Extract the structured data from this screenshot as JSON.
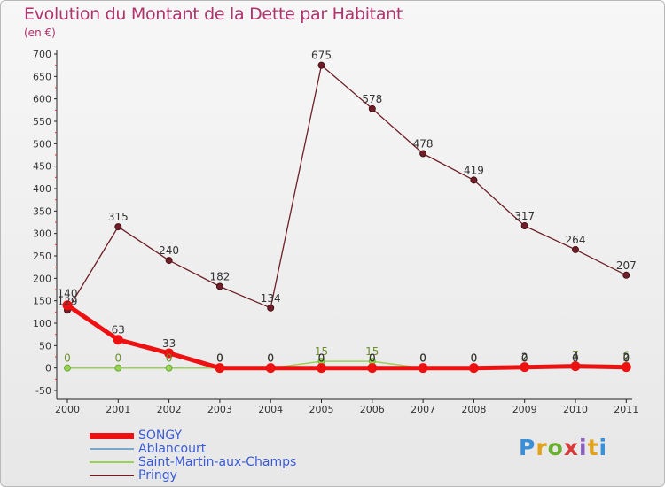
{
  "header": {
    "title": "Evolution du Montant de la Dette par Habitant",
    "subtitle": "(en €)"
  },
  "logo": {
    "text": "Proxiti",
    "colors": [
      "#3b8fd6",
      "#e2a21c",
      "#6ab02e",
      "#d93b3b",
      "#8a5ec2",
      "#e2a21c",
      "#3b8fd6"
    ]
  },
  "chart_data": {
    "type": "line",
    "x": [
      "2000",
      "2001",
      "2002",
      "2003",
      "2004",
      "2005",
      "2006",
      "2007",
      "2008",
      "2009",
      "2010",
      "2011"
    ],
    "ylim": [
      -50,
      700
    ],
    "yticks": [
      "-50",
      "0",
      "50",
      "100",
      "150",
      "200",
      "250",
      "300",
      "350",
      "400",
      "450",
      "500",
      "550",
      "600",
      "650",
      "700"
    ],
    "grid": false,
    "legend_position": "bottom-left",
    "series": [
      {
        "name": "SONGY",
        "color": "#ee1111",
        "values": [
          140,
          63,
          33,
          0,
          0,
          0,
          0,
          0,
          0,
          2,
          4,
          2
        ],
        "labels": [
          "140",
          "63",
          "33",
          "0",
          "0",
          "0",
          "0",
          "0",
          "0",
          "2",
          "4",
          "2"
        ]
      },
      {
        "name": "Ablancourt",
        "color": "#7ba7cc",
        "values": [
          null,
          null,
          null,
          0,
          0,
          0,
          0,
          0,
          0,
          0,
          0,
          0
        ],
        "labels": [
          "",
          "",
          "",
          "0",
          "0",
          "0",
          "0",
          "0",
          "0",
          "0",
          "0",
          "0"
        ]
      },
      {
        "name": "Saint-Martin-aux-Champs",
        "color": "#99d255",
        "values": [
          0,
          0,
          0,
          0,
          0,
          15,
          15,
          0,
          0,
          0,
          7,
          6
        ],
        "labels": [
          "0",
          "0",
          "0",
          "0",
          "0",
          "15",
          "15",
          "0",
          "0",
          "0",
          "7",
          "6"
        ]
      },
      {
        "name": "Pringy",
        "color": "#6e1f27",
        "values": [
          129,
          315,
          240,
          182,
          134,
          675,
          578,
          478,
          419,
          317,
          264,
          207
        ],
        "labels": [
          "129",
          "315",
          "240",
          "182",
          "134",
          "675",
          "578",
          "478",
          "419",
          "317",
          "264",
          "207"
        ]
      }
    ]
  }
}
